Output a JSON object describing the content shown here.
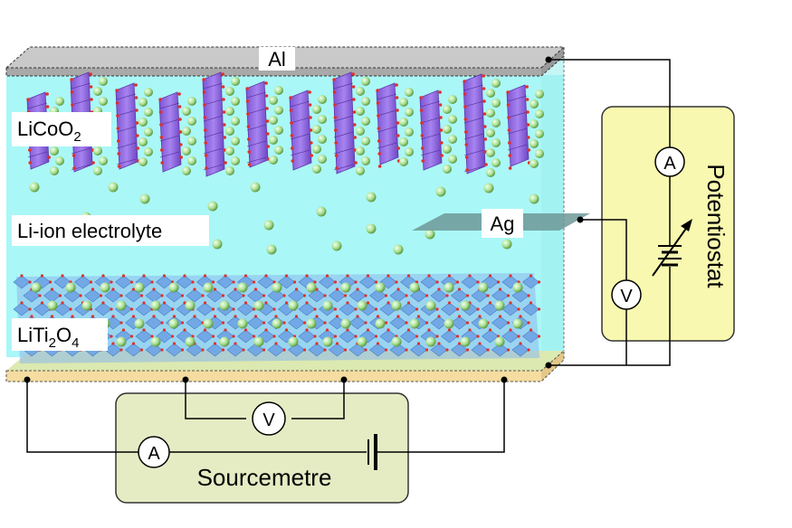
{
  "labels": {
    "al": "Al",
    "cathode": "LiCoO",
    "cathode_sub": "2",
    "electrolyte": "Li-ion electrolyte",
    "ag": "Ag",
    "anode_a": "LiTi",
    "anode_sub1": "2",
    "anode_b": "O",
    "anode_sub2": "4",
    "potentiostat": "Potentiostat",
    "sourcemetre": "Sourcemetre",
    "ammeter": "A",
    "voltmeter": "V"
  },
  "colors": {
    "electrolyte": "#aaf7f7",
    "aluminium": "#b3b3b3",
    "bottom_contact": "#f5dca0",
    "potentiostat_box": "#f8f8b0",
    "sourcemetre_box": "#e5ecc4",
    "octahedra_cathode": "#9a66e8",
    "octahedra_anode": "#80aee8",
    "li_ion": "#a8e090",
    "ag_electrode": "#6f9898"
  }
}
